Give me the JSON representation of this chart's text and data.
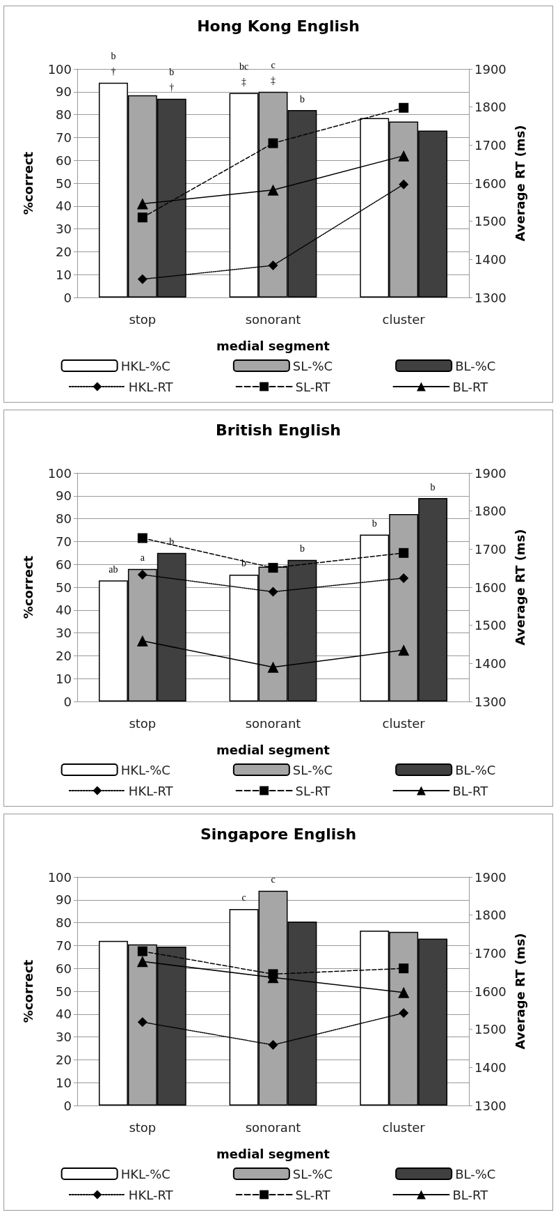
{
  "chart_data": [
    {
      "type": "bar",
      "title": "Hong Kong English",
      "xlabel": "medial segment",
      "ylabel": "%correct",
      "y2label": "Average RT (ms)",
      "categories": [
        "stop",
        "sonorant",
        "cluster"
      ],
      "series": [
        {
          "name": "HKL-%C",
          "color": "#ffffff",
          "values": [
            94,
            89.5,
            78.5
          ],
          "value_labels": [
            "b\n†",
            "bc\n‡",
            null
          ]
        },
        {
          "name": "SL-%C",
          "color": "#a6a6a6",
          "values": [
            88.5,
            90,
            77
          ],
          "value_labels": [
            null,
            "c\n‡",
            null
          ]
        },
        {
          "name": "BL-%C",
          "color": "#404040",
          "values": [
            87,
            82,
            73
          ],
          "value_labels": [
            "b\n†",
            "b",
            null
          ]
        },
        {
          "name": "HKL-RT",
          "type": "line",
          "axis": "y2",
          "color": "#000000",
          "marker": "diamond",
          "line_style": "dotted",
          "values": [
            1348,
            1384,
            1597
          ]
        },
        {
          "name": "SL-RT",
          "type": "line",
          "axis": "y2",
          "color": "#000000",
          "marker": "square",
          "line_style": "dashed",
          "values": [
            1510,
            1705,
            1798
          ]
        },
        {
          "name": "BL-RT",
          "type": "line",
          "axis": "y2",
          "color": "#000000",
          "marker": "triangle",
          "line_style": "solid",
          "values": [
            1546,
            1582,
            1672
          ]
        }
      ],
      "ylim": [
        0,
        100
      ],
      "yticks": [
        0,
        10,
        20,
        30,
        40,
        50,
        60,
        70,
        80,
        90,
        100
      ],
      "y2lim": [
        1300,
        1900
      ],
      "y2ticks": [
        1300,
        1400,
        1500,
        1600,
        1700,
        1800,
        1900
      ],
      "grid": "y",
      "legend": "bottom"
    },
    {
      "type": "bar",
      "title": "British English",
      "xlabel": "medial segment",
      "ylabel": "%correct",
      "y2label": "Average RT (ms)",
      "categories": [
        "stop",
        "sonorant",
        "cluster"
      ],
      "series": [
        {
          "name": "HKL-%C",
          "color": "#ffffff",
          "values": [
            53,
            55.5,
            73
          ],
          "value_labels": [
            "ab",
            "b",
            "b"
          ]
        },
        {
          "name": "SL-%C",
          "color": "#a6a6a6",
          "values": [
            58,
            59,
            82
          ],
          "value_labels": [
            "a",
            null,
            null
          ]
        },
        {
          "name": "BL-%C",
          "color": "#404040",
          "values": [
            65,
            62,
            89
          ],
          "value_labels": [
            "b",
            "b",
            "b"
          ]
        },
        {
          "name": "HKL-RT",
          "type": "line",
          "axis": "y2",
          "color": "#000000",
          "marker": "diamond",
          "line_style": "dotted",
          "values": [
            1633,
            1588,
            1624
          ]
        },
        {
          "name": "SL-RT",
          "type": "line",
          "axis": "y2",
          "color": "#000000",
          "marker": "square",
          "line_style": "dashed",
          "values": [
            1729,
            1651,
            1690
          ]
        },
        {
          "name": "BL-RT",
          "type": "line",
          "axis": "y2",
          "color": "#000000",
          "marker": "triangle",
          "line_style": "solid",
          "values": [
            1459,
            1390,
            1435
          ]
        }
      ],
      "ylim": [
        0,
        100
      ],
      "yticks": [
        0,
        10,
        20,
        30,
        40,
        50,
        60,
        70,
        80,
        90,
        100
      ],
      "y2lim": [
        1300,
        1900
      ],
      "y2ticks": [
        1300,
        1400,
        1500,
        1600,
        1700,
        1800,
        1900
      ],
      "grid": "y",
      "legend": "bottom"
    },
    {
      "type": "bar",
      "title": "Singapore English",
      "xlabel": "medial segment",
      "ylabel": "%correct",
      "y2label": "Average RT (ms)",
      "categories": [
        "stop",
        "sonorant",
        "cluster"
      ],
      "series": [
        {
          "name": "HKL-%C",
          "color": "#ffffff",
          "values": [
            72,
            86,
            76.5
          ],
          "value_labels": [
            null,
            "c",
            null
          ]
        },
        {
          "name": "SL-%C",
          "color": "#a6a6a6",
          "values": [
            70.5,
            94,
            76
          ],
          "value_labels": [
            null,
            "c",
            null
          ]
        },
        {
          "name": "BL-%C",
          "color": "#404040",
          "values": [
            69.5,
            80.5,
            73
          ]
        },
        {
          "name": "HKL-RT",
          "type": "line",
          "axis": "y2",
          "color": "#000000",
          "marker": "diamond",
          "line_style": "dotted",
          "values": [
            1519,
            1459,
            1543
          ]
        },
        {
          "name": "SL-RT",
          "type": "line",
          "axis": "y2",
          "color": "#000000",
          "marker": "square",
          "line_style": "dashed",
          "values": [
            1705,
            1645,
            1660
          ]
        },
        {
          "name": "BL-RT",
          "type": "line",
          "axis": "y2",
          "color": "#000000",
          "marker": "triangle",
          "line_style": "solid",
          "values": [
            1678,
            1636,
            1597
          ]
        }
      ],
      "ylim": [
        0,
        100
      ],
      "yticks": [
        0,
        10,
        20,
        30,
        40,
        50,
        60,
        70,
        80,
        90,
        100
      ],
      "y2lim": [
        1300,
        1900
      ],
      "y2ticks": [
        1300,
        1400,
        1500,
        1600,
        1700,
        1800,
        1900
      ],
      "grid": "y",
      "legend": "bottom"
    }
  ]
}
